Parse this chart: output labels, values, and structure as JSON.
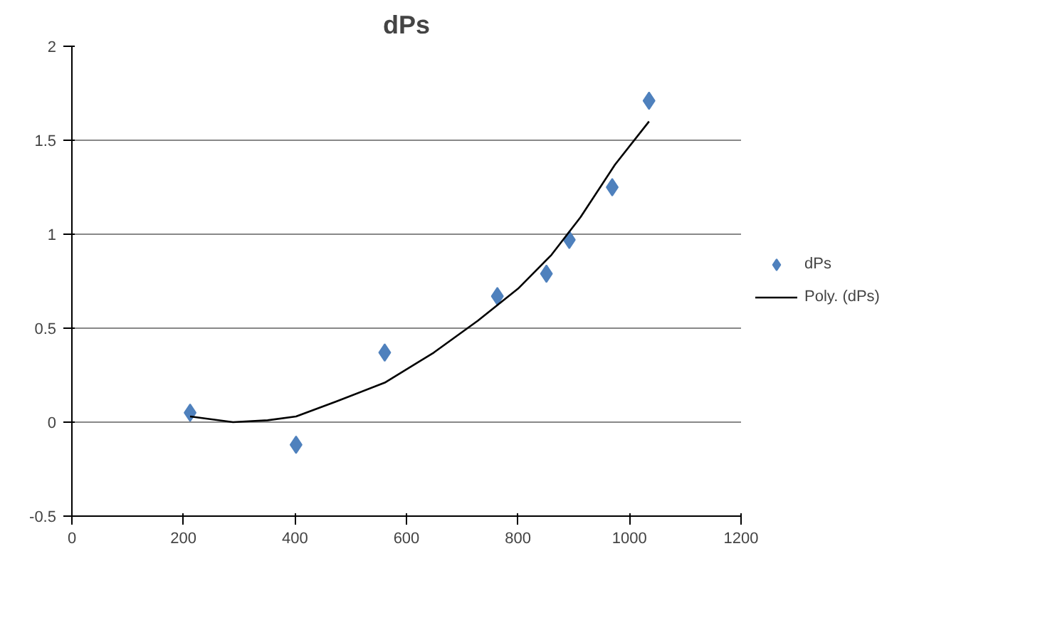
{
  "chart_data": {
    "type": "scatter",
    "title": "dPs",
    "series": [
      {
        "name": "dPs",
        "color": "#4f81bd",
        "marker": "diamond",
        "x": [
          212,
          402,
          561,
          763,
          851,
          892,
          969,
          1035
        ],
        "values": [
          0.05,
          -0.12,
          0.37,
          0.67,
          0.79,
          0.97,
          1.25,
          1.71
        ]
      },
      {
        "name": "Poly. (dPs)",
        "type": "line",
        "marker": "none",
        "color": "#000000",
        "x": [
          212,
          289,
          351,
          402,
          474,
          561,
          649,
          728,
          800,
          860,
          912,
          974,
          1035
        ],
        "values": [
          0.03,
          0,
          0.01,
          0.03,
          0.11,
          0.21,
          0.37,
          0.54,
          0.71,
          0.89,
          1.09,
          1.37,
          1.6
        ]
      }
    ],
    "xlim": [
      0,
      1200
    ],
    "xticks": [
      0,
      200,
      400,
      600,
      800,
      1000,
      1200
    ],
    "ylim": [
      -0.5,
      2
    ],
    "yticks": [
      -0.5,
      0,
      0.5,
      1,
      1.5,
      2
    ],
    "grid": "y",
    "legend": "right"
  }
}
